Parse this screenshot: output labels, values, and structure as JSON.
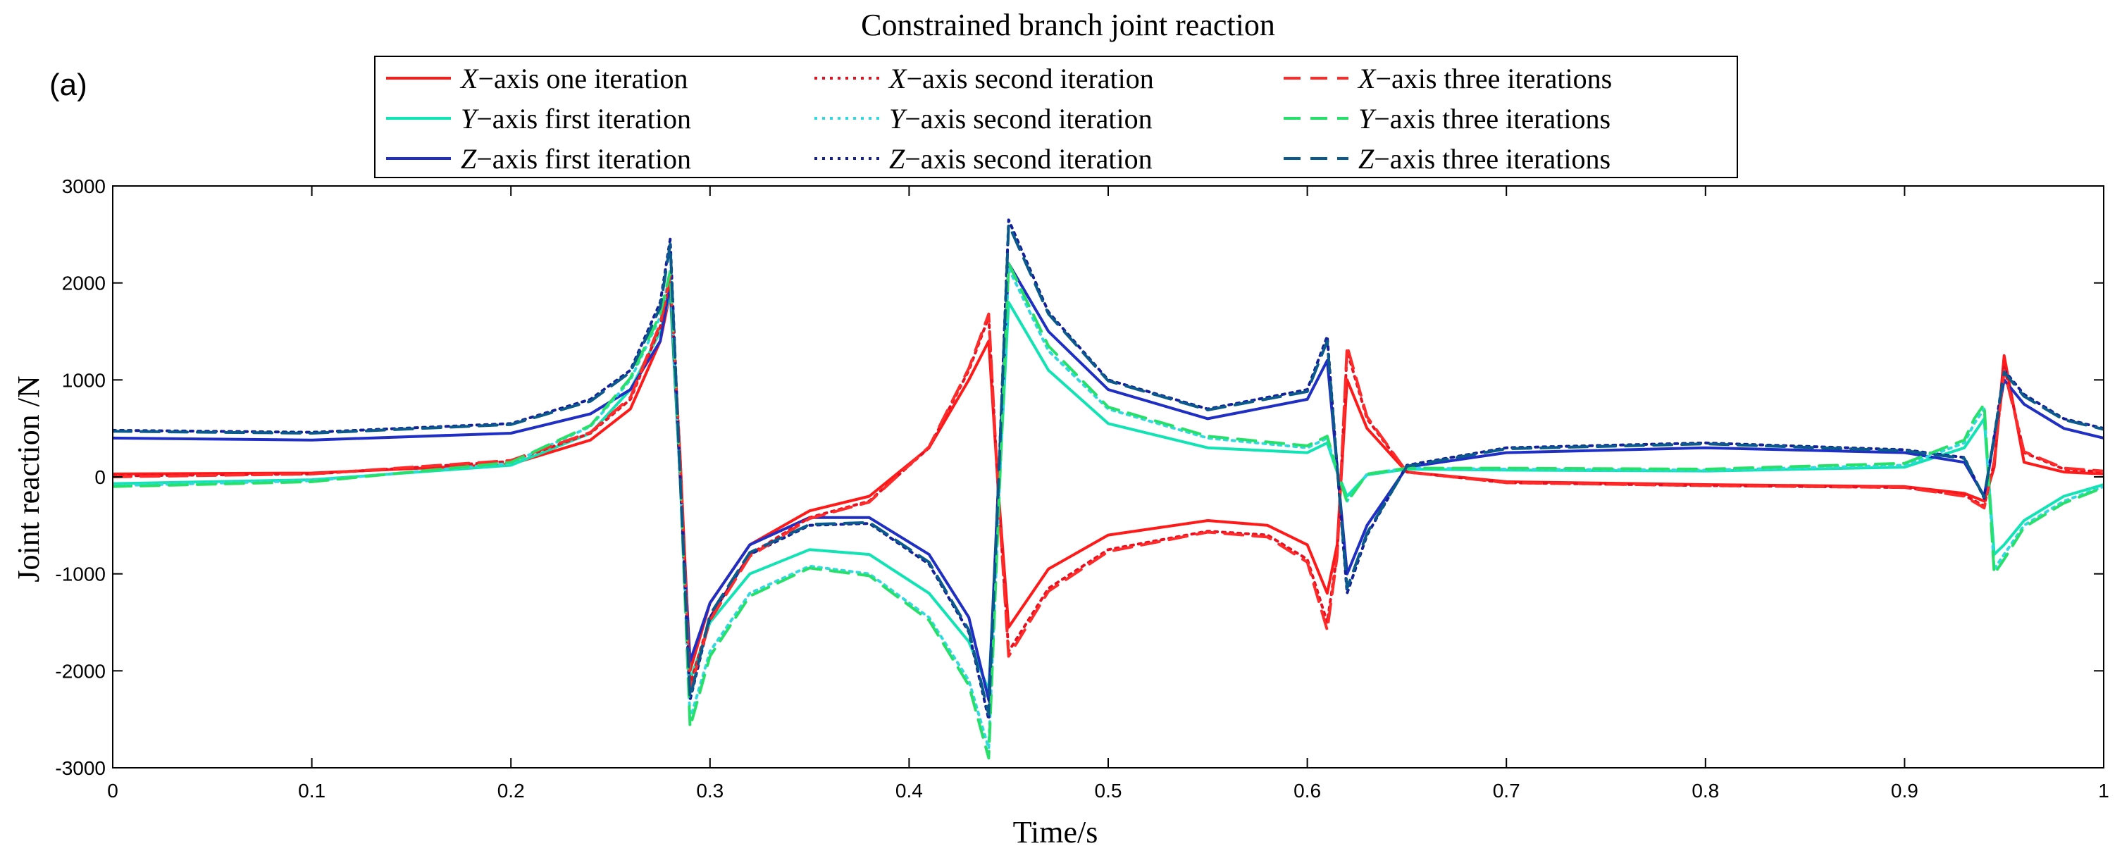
{
  "chart_data": {
    "type": "line",
    "panel_label": "(a)",
    "title": "Constrained branch joint reaction",
    "xlabel": "Time/s",
    "ylabel": "Joint reaction /N",
    "xlim": [
      0,
      1
    ],
    "ylim": [
      -3000,
      3000
    ],
    "xticks": [
      0,
      0.1,
      0.2,
      0.3,
      0.4,
      0.5,
      0.6,
      0.7,
      0.8,
      0.9,
      1
    ],
    "xtick_labels": [
      "0",
      "0.1",
      "0.2",
      "0.3",
      "0.4",
      "0.5",
      "0.6",
      "0.7",
      "0.8",
      "0.9",
      "1"
    ],
    "yticks": [
      -3000,
      -2000,
      -1000,
      0,
      1000,
      2000,
      3000
    ],
    "ytick_labels": [
      "-3000",
      "-2000",
      "-1000",
      "0",
      "1000",
      "2000",
      "3000"
    ],
    "grid": false,
    "legend_position": "top-center",
    "legend_columns": 3,
    "series": [
      {
        "axis_var": "X",
        "name": "X−axis one iteration",
        "label_rest": "−axis one iteration",
        "color": "#ff1a1a",
        "style": "solid",
        "x": [
          0,
          0.1,
          0.2,
          0.24,
          0.26,
          0.275,
          0.28,
          0.285,
          0.29,
          0.3,
          0.32,
          0.35,
          0.38,
          0.41,
          0.43,
          0.44,
          0.445,
          0.45,
          0.47,
          0.5,
          0.55,
          0.58,
          0.6,
          0.61,
          0.615,
          0.62,
          0.63,
          0.65,
          0.7,
          0.8,
          0.9,
          0.93,
          0.94,
          0.945,
          0.95,
          0.96,
          0.98,
          1
        ],
        "y": [
          30,
          40,
          130,
          380,
          700,
          1400,
          1900,
          200,
          -2000,
          -1300,
          -700,
          -350,
          -200,
          300,
          1000,
          1400,
          -200,
          -1550,
          -950,
          -600,
          -450,
          -500,
          -700,
          -1200,
          -700,
          1000,
          500,
          50,
          -50,
          -80,
          -100,
          -170,
          -250,
          100,
          1250,
          150,
          50,
          30
        ]
      },
      {
        "axis_var": "Y",
        "name": "Y−axis first iteration",
        "label_rest": "−axis first iteration",
        "color": "#11e3b4",
        "style": "solid",
        "x": [
          0,
          0.1,
          0.2,
          0.24,
          0.26,
          0.275,
          0.28,
          0.285,
          0.29,
          0.3,
          0.32,
          0.35,
          0.38,
          0.41,
          0.43,
          0.44,
          0.445,
          0.45,
          0.47,
          0.5,
          0.55,
          0.6,
          0.61,
          0.615,
          0.62,
          0.63,
          0.65,
          0.7,
          0.8,
          0.9,
          0.93,
          0.935,
          0.94,
          0.945,
          0.95,
          0.96,
          0.98,
          1
        ],
        "y": [
          -70,
          -30,
          120,
          450,
          900,
          1500,
          1900,
          0,
          -2100,
          -1500,
          -1000,
          -750,
          -800,
          -1200,
          -1700,
          -2200,
          -200,
          1800,
          1100,
          550,
          300,
          250,
          350,
          50,
          -200,
          20,
          80,
          70,
          60,
          100,
          300,
          450,
          600,
          -800,
          -700,
          -450,
          -200,
          -80
        ]
      },
      {
        "axis_var": "Z",
        "name": "Z−axis first iteration",
        "label_rest": "−axis first iteration",
        "color": "#1f2fc4",
        "style": "solid",
        "x": [
          0,
          0.1,
          0.2,
          0.24,
          0.26,
          0.275,
          0.28,
          0.285,
          0.29,
          0.3,
          0.32,
          0.35,
          0.38,
          0.41,
          0.43,
          0.44,
          0.445,
          0.45,
          0.47,
          0.5,
          0.55,
          0.6,
          0.61,
          0.615,
          0.62,
          0.63,
          0.65,
          0.7,
          0.8,
          0.9,
          0.93,
          0.94,
          0.945,
          0.95,
          0.96,
          0.98,
          1
        ],
        "y": [
          400,
          380,
          450,
          650,
          900,
          1400,
          2000,
          0,
          -1900,
          -1300,
          -700,
          -420,
          -420,
          -800,
          -1450,
          -2300,
          0,
          2200,
          1500,
          900,
          600,
          800,
          1200,
          100,
          -1000,
          -500,
          100,
          250,
          300,
          250,
          150,
          -200,
          400,
          1000,
          750,
          500,
          400
        ]
      },
      {
        "axis_var": "X",
        "name": "X−axis second iteration",
        "label_rest": "−axis second iteration",
        "color": "#e8101f",
        "style": "dotted",
        "x": [
          0,
          0.1,
          0.2,
          0.24,
          0.26,
          0.275,
          0.28,
          0.285,
          0.29,
          0.3,
          0.32,
          0.35,
          0.38,
          0.41,
          0.43,
          0.44,
          0.445,
          0.45,
          0.47,
          0.5,
          0.55,
          0.58,
          0.6,
          0.61,
          0.615,
          0.62,
          0.63,
          0.65,
          0.7,
          0.8,
          0.9,
          0.93,
          0.94,
          0.945,
          0.95,
          0.96,
          0.98,
          1
        ],
        "y": [
          10,
          30,
          160,
          450,
          800,
          1550,
          2050,
          200,
          -2150,
          -1450,
          -800,
          -420,
          -250,
          300,
          1100,
          1650,
          -250,
          -1800,
          -1150,
          -750,
          -560,
          -600,
          -850,
          -1500,
          -800,
          1300,
          600,
          50,
          -60,
          -90,
          -110,
          -190,
          -300,
          150,
          1150,
          250,
          80,
          50
        ]
      },
      {
        "axis_var": "Y",
        "name": "Y−axis second iteration",
        "label_rest": "−axis second iteration",
        "color": "#30d8e0",
        "style": "dotted",
        "x": [
          0,
          0.1,
          0.2,
          0.24,
          0.26,
          0.275,
          0.28,
          0.285,
          0.29,
          0.3,
          0.32,
          0.35,
          0.38,
          0.41,
          0.43,
          0.44,
          0.445,
          0.45,
          0.47,
          0.5,
          0.55,
          0.6,
          0.61,
          0.615,
          0.62,
          0.63,
          0.65,
          0.7,
          0.8,
          0.9,
          0.93,
          0.935,
          0.94,
          0.945,
          0.95,
          0.96,
          0.98,
          1
        ],
        "y": [
          -90,
          -40,
          140,
          520,
          1000,
          1650,
          2100,
          0,
          -2500,
          -1800,
          -1200,
          -920,
          -1000,
          -1450,
          -2100,
          -2800,
          -300,
          2150,
          1300,
          700,
          400,
          300,
          400,
          50,
          -250,
          30,
          90,
          80,
          70,
          120,
          350,
          550,
          700,
          -950,
          -800,
          -500,
          -250,
          -100
        ]
      },
      {
        "axis_var": "Z",
        "name": "Z−axis second iteration",
        "label_rest": "−axis second iteration",
        "color": "#14209a",
        "style": "dotted",
        "x": [
          0,
          0.1,
          0.2,
          0.24,
          0.26,
          0.275,
          0.28,
          0.285,
          0.29,
          0.3,
          0.32,
          0.35,
          0.38,
          0.41,
          0.43,
          0.44,
          0.445,
          0.45,
          0.47,
          0.5,
          0.55,
          0.6,
          0.61,
          0.615,
          0.62,
          0.63,
          0.65,
          0.7,
          0.8,
          0.9,
          0.93,
          0.94,
          0.945,
          0.95,
          0.96,
          0.98,
          1
        ],
        "y": [
          480,
          460,
          550,
          800,
          1100,
          1800,
          2450,
          0,
          -2300,
          -1450,
          -800,
          -500,
          -480,
          -900,
          -1600,
          -2500,
          0,
          2650,
          1700,
          1000,
          700,
          900,
          1450,
          100,
          -1200,
          -600,
          120,
          300,
          350,
          280,
          200,
          -220,
          420,
          1100,
          850,
          600,
          500
        ]
      },
      {
        "axis_var": "X",
        "name": "X−axis three iterations",
        "label_rest": "−axis three iterations",
        "color": "#ff2a2a",
        "style": "dashed",
        "x": [
          0,
          0.1,
          0.2,
          0.24,
          0.26,
          0.275,
          0.28,
          0.285,
          0.29,
          0.3,
          0.32,
          0.35,
          0.38,
          0.41,
          0.43,
          0.44,
          0.445,
          0.45,
          0.47,
          0.5,
          0.55,
          0.58,
          0.6,
          0.61,
          0.615,
          0.62,
          0.63,
          0.65,
          0.7,
          0.8,
          0.9,
          0.93,
          0.94,
          0.945,
          0.95,
          0.96,
          0.98,
          1
        ],
        "y": [
          0,
          30,
          170,
          460,
          820,
          1580,
          2080,
          200,
          -2200,
          -1480,
          -820,
          -430,
          -260,
          310,
          1120,
          1680,
          -260,
          -1850,
          -1180,
          -770,
          -570,
          -620,
          -880,
          -1580,
          -820,
          1350,
          620,
          50,
          -60,
          -90,
          -110,
          -200,
          -320,
          160,
          1100,
          260,
          90,
          60
        ]
      },
      {
        "axis_var": "Y",
        "name": "Y−axis three iterations",
        "label_rest": "−axis three iterations",
        "color": "#27e06a",
        "style": "dashed",
        "x": [
          0,
          0.1,
          0.2,
          0.24,
          0.26,
          0.275,
          0.28,
          0.285,
          0.29,
          0.3,
          0.32,
          0.35,
          0.38,
          0.41,
          0.43,
          0.44,
          0.445,
          0.45,
          0.47,
          0.5,
          0.55,
          0.6,
          0.61,
          0.615,
          0.62,
          0.63,
          0.65,
          0.7,
          0.8,
          0.9,
          0.93,
          0.935,
          0.94,
          0.945,
          0.95,
          0.96,
          0.98,
          1
        ],
        "y": [
          -100,
          -50,
          150,
          530,
          1020,
          1680,
          2120,
          0,
          -2580,
          -1850,
          -1230,
          -940,
          -1020,
          -1480,
          -2150,
          -2900,
          -320,
          2200,
          1350,
          720,
          420,
          320,
          420,
          60,
          -260,
          30,
          90,
          90,
          80,
          140,
          380,
          600,
          750,
          -1000,
          -850,
          -520,
          -270,
          -110
        ]
      },
      {
        "axis_var": "Z",
        "name": "Z−axis three iterations",
        "label_rest": "−axis three iterations",
        "color": "#0a5a8c",
        "style": "dashed",
        "x": [
          0,
          0.1,
          0.2,
          0.24,
          0.26,
          0.275,
          0.28,
          0.285,
          0.29,
          0.3,
          0.32,
          0.35,
          0.38,
          0.41,
          0.43,
          0.44,
          0.445,
          0.45,
          0.47,
          0.5,
          0.55,
          0.6,
          0.61,
          0.615,
          0.62,
          0.63,
          0.65,
          0.7,
          0.8,
          0.9,
          0.93,
          0.94,
          0.945,
          0.95,
          0.96,
          0.98,
          1
        ],
        "y": [
          470,
          450,
          540,
          780,
          1080,
          1750,
          2400,
          0,
          -2280,
          -1420,
          -780,
          -490,
          -470,
          -880,
          -1580,
          -2450,
          0,
          2600,
          1680,
          990,
          690,
          880,
          1400,
          100,
          -1150,
          -580,
          110,
          290,
          340,
          270,
          190,
          -210,
          410,
          1080,
          830,
          590,
          490
        ]
      }
    ]
  }
}
